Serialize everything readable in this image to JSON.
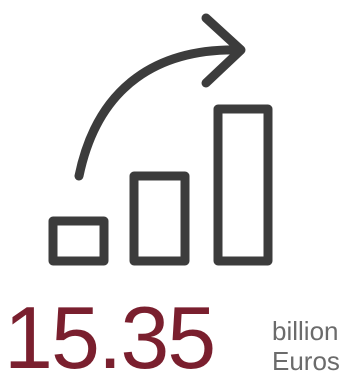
{
  "stat": {
    "value": "15.35",
    "unit_line1": "billion",
    "unit_line2": "Euros"
  },
  "icon": {
    "name": "growth-chart-icon",
    "stroke_color": "#3c3c3c"
  },
  "colors": {
    "value": "#7a1f2e",
    "unit": "#6b6b6b",
    "background": "#ffffff"
  }
}
